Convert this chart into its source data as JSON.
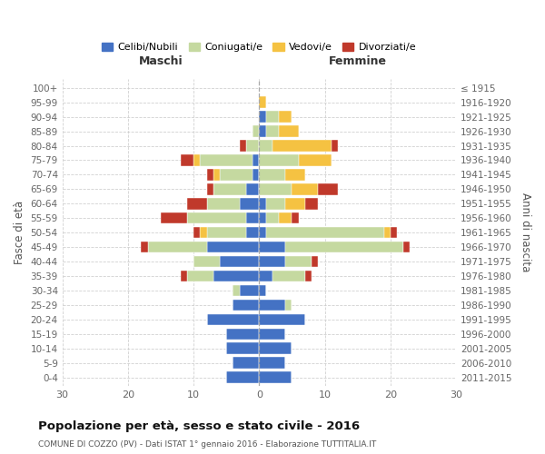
{
  "age_groups": [
    "100+",
    "95-99",
    "90-94",
    "85-89",
    "80-84",
    "75-79",
    "70-74",
    "65-69",
    "60-64",
    "55-59",
    "50-54",
    "45-49",
    "40-44",
    "35-39",
    "30-34",
    "25-29",
    "20-24",
    "15-19",
    "10-14",
    "5-9",
    "0-4"
  ],
  "birth_years": [
    "≤ 1915",
    "1916-1920",
    "1921-1925",
    "1926-1930",
    "1931-1935",
    "1936-1940",
    "1941-1945",
    "1946-1950",
    "1951-1955",
    "1956-1960",
    "1961-1965",
    "1966-1970",
    "1971-1975",
    "1976-1980",
    "1981-1985",
    "1986-1990",
    "1991-1995",
    "1996-2000",
    "2001-2005",
    "2006-2010",
    "2011-2015"
  ],
  "maschi": {
    "celibi": [
      0,
      0,
      0,
      0,
      0,
      1,
      1,
      2,
      3,
      2,
      2,
      8,
      6,
      7,
      3,
      4,
      8,
      5,
      5,
      4,
      5
    ],
    "coniugati": [
      0,
      0,
      0,
      1,
      2,
      8,
      5,
      5,
      5,
      9,
      6,
      9,
      4,
      4,
      1,
      0,
      0,
      0,
      0,
      0,
      0
    ],
    "vedovi": [
      0,
      0,
      0,
      0,
      0,
      1,
      1,
      0,
      0,
      0,
      1,
      0,
      0,
      0,
      0,
      0,
      0,
      0,
      0,
      0,
      0
    ],
    "divorziati": [
      0,
      0,
      0,
      0,
      1,
      2,
      1,
      1,
      3,
      4,
      1,
      1,
      0,
      1,
      0,
      0,
      0,
      0,
      0,
      0,
      0
    ]
  },
  "femmine": {
    "nubili": [
      0,
      0,
      1,
      1,
      0,
      0,
      0,
      0,
      1,
      1,
      1,
      4,
      4,
      2,
      1,
      4,
      7,
      4,
      5,
      4,
      5
    ],
    "coniugate": [
      0,
      0,
      2,
      2,
      2,
      6,
      4,
      5,
      3,
      2,
      18,
      18,
      4,
      5,
      0,
      1,
      0,
      0,
      0,
      0,
      0
    ],
    "vedove": [
      0,
      1,
      2,
      3,
      9,
      5,
      3,
      4,
      3,
      2,
      1,
      0,
      0,
      0,
      0,
      0,
      0,
      0,
      0,
      0,
      0
    ],
    "divorziate": [
      0,
      0,
      0,
      0,
      1,
      0,
      0,
      3,
      2,
      1,
      1,
      1,
      1,
      1,
      0,
      0,
      0,
      0,
      0,
      0,
      0
    ]
  },
  "colors": {
    "celibi_nubili": "#4472c4",
    "coniugati": "#c5d9a0",
    "vedovi": "#f5c242",
    "divorziati": "#c0392b"
  },
  "xlim": [
    -30,
    30
  ],
  "xticklabels": [
    "30",
    "20",
    "10",
    "0",
    "10",
    "20",
    "30"
  ],
  "title": "Popolazione per età, sesso e stato civile - 2016",
  "subtitle": "COMUNE DI COZZO (PV) - Dati ISTAT 1° gennaio 2016 - Elaborazione TUTTITALIA.IT",
  "ylabel_left": "Fasce di età",
  "ylabel_right": "Anni di nascita",
  "label_maschi": "Maschi",
  "label_femmine": "Femmine",
  "legend_labels": [
    "Celibi/Nubili",
    "Coniugati/e",
    "Vedovi/e",
    "Divorziati/e"
  ],
  "bg_color": "#ffffff",
  "grid_color": "#cccccc"
}
